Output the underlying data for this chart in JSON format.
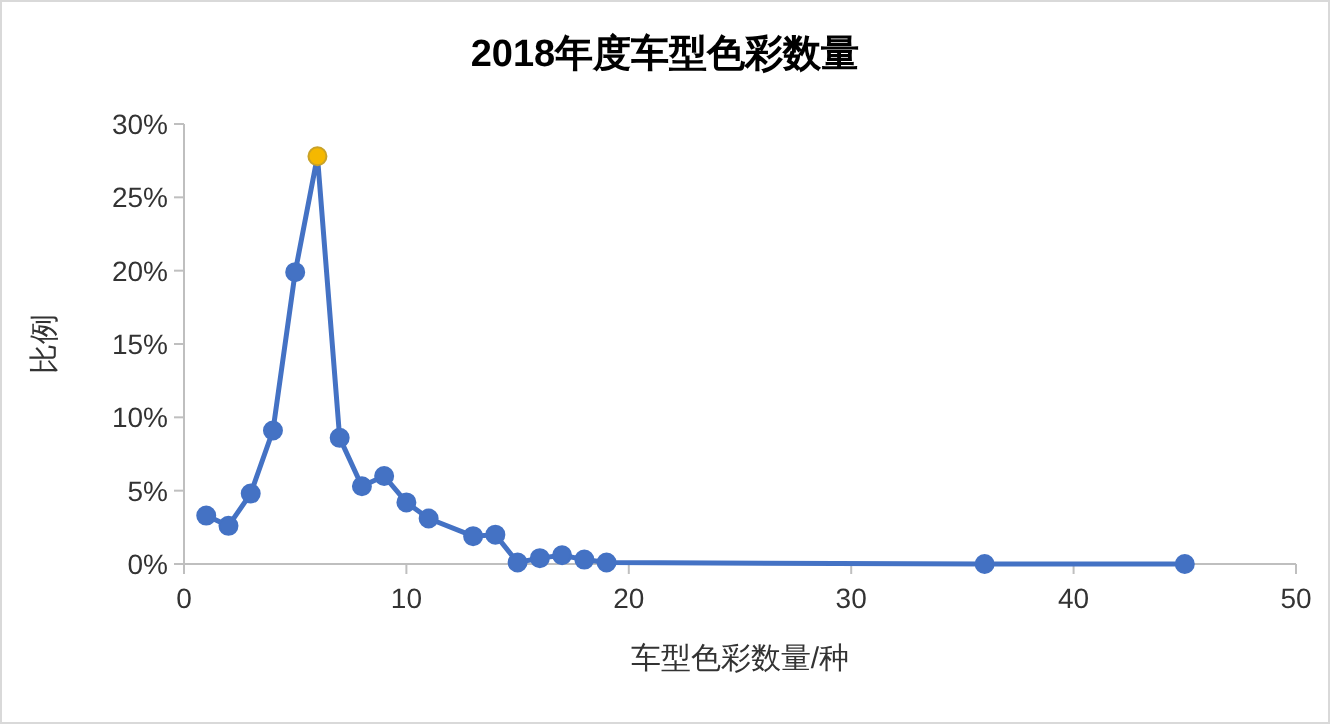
{
  "chart_data": {
    "type": "line",
    "title": "2018年度车型色彩数量",
    "xlabel": "车型色彩数量/种",
    "ylabel": "比例",
    "x": [
      1,
      2,
      3,
      4,
      5,
      6,
      7,
      8,
      9,
      10,
      11,
      13,
      14,
      15,
      16,
      17,
      18,
      19,
      36,
      45
    ],
    "series": [
      {
        "color": "#4472c4",
        "colors": [
          "#4472c4",
          "#4472c4",
          "#4472c4",
          "#4472c4",
          "#4472c4",
          "#f5b800",
          "#4472c4",
          "#4472c4",
          "#4472c4",
          "#4472c4",
          "#4472c4",
          "#4472c4",
          "#4472c4",
          "#4472c4",
          "#4472c4",
          "#4472c4",
          "#4472c4",
          "#4472c4",
          "#4472c4",
          "#4472c4"
        ],
        "values": [
          3.3,
          2.6,
          4.8,
          9.1,
          19.9,
          27.8,
          8.6,
          5.3,
          6.0,
          4.2,
          3.1,
          1.9,
          2.0,
          0.1,
          0.4,
          0.6,
          0.3,
          0.1,
          0,
          0
        ]
      }
    ],
    "xlim": [
      0,
      50
    ],
    "xticks": [
      0,
      10,
      20,
      30,
      40,
      50
    ],
    "ylim": [
      0,
      30
    ],
    "yticks": [
      {
        "value": 0,
        "label": "0%"
      },
      {
        "value": 5,
        "label": "5%"
      },
      {
        "value": 10,
        "label": "10%"
      },
      {
        "value": 15,
        "label": "15%"
      },
      {
        "value": 20,
        "label": "20%"
      },
      {
        "value": 25,
        "label": "25%"
      },
      {
        "value": 30,
        "label": "30%"
      }
    ],
    "marker": "circle",
    "line_style": "solid"
  }
}
